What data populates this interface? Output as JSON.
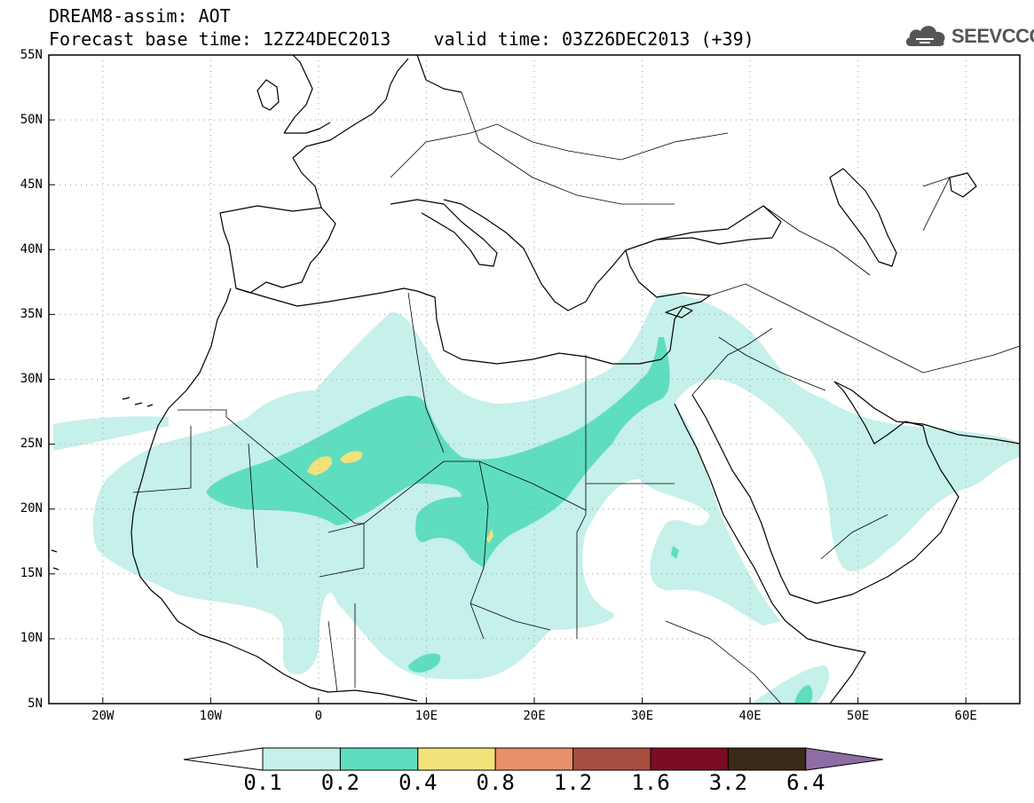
{
  "header": {
    "line1": "DREAM8-assim: AOT",
    "line2": "Forecast base time: 12Z24DEC2013    valid time: 03Z26DEC2013 (+39)"
  },
  "logo": {
    "text": "SEEVCCC",
    "icon": "cloud-icon",
    "color": "#555555"
  },
  "map": {
    "variable": "AOT",
    "lon_range": [
      -25,
      65
    ],
    "lat_range": [
      5,
      55
    ],
    "lat_labels": [
      "55N",
      "50N",
      "45N",
      "40N",
      "35N",
      "30N",
      "25N",
      "20N",
      "15N",
      "10N",
      "5N"
    ],
    "lon_labels": [
      "20W",
      "10W",
      "0",
      "10E",
      "20E",
      "30E",
      "40E",
      "50E",
      "60E"
    ],
    "grid": "dotted"
  },
  "colorbar": {
    "colors": [
      "#c6f0ea",
      "#5fdebf",
      "#f2e27a",
      "#e8906a",
      "#a84e3e",
      "#7e0b25",
      "#3a2a18",
      "#8e6ca6"
    ],
    "labels": [
      "0.1",
      "0.2",
      "0.4",
      "0.8",
      "1.2",
      "1.6",
      "3.2",
      "6.4"
    ]
  }
}
